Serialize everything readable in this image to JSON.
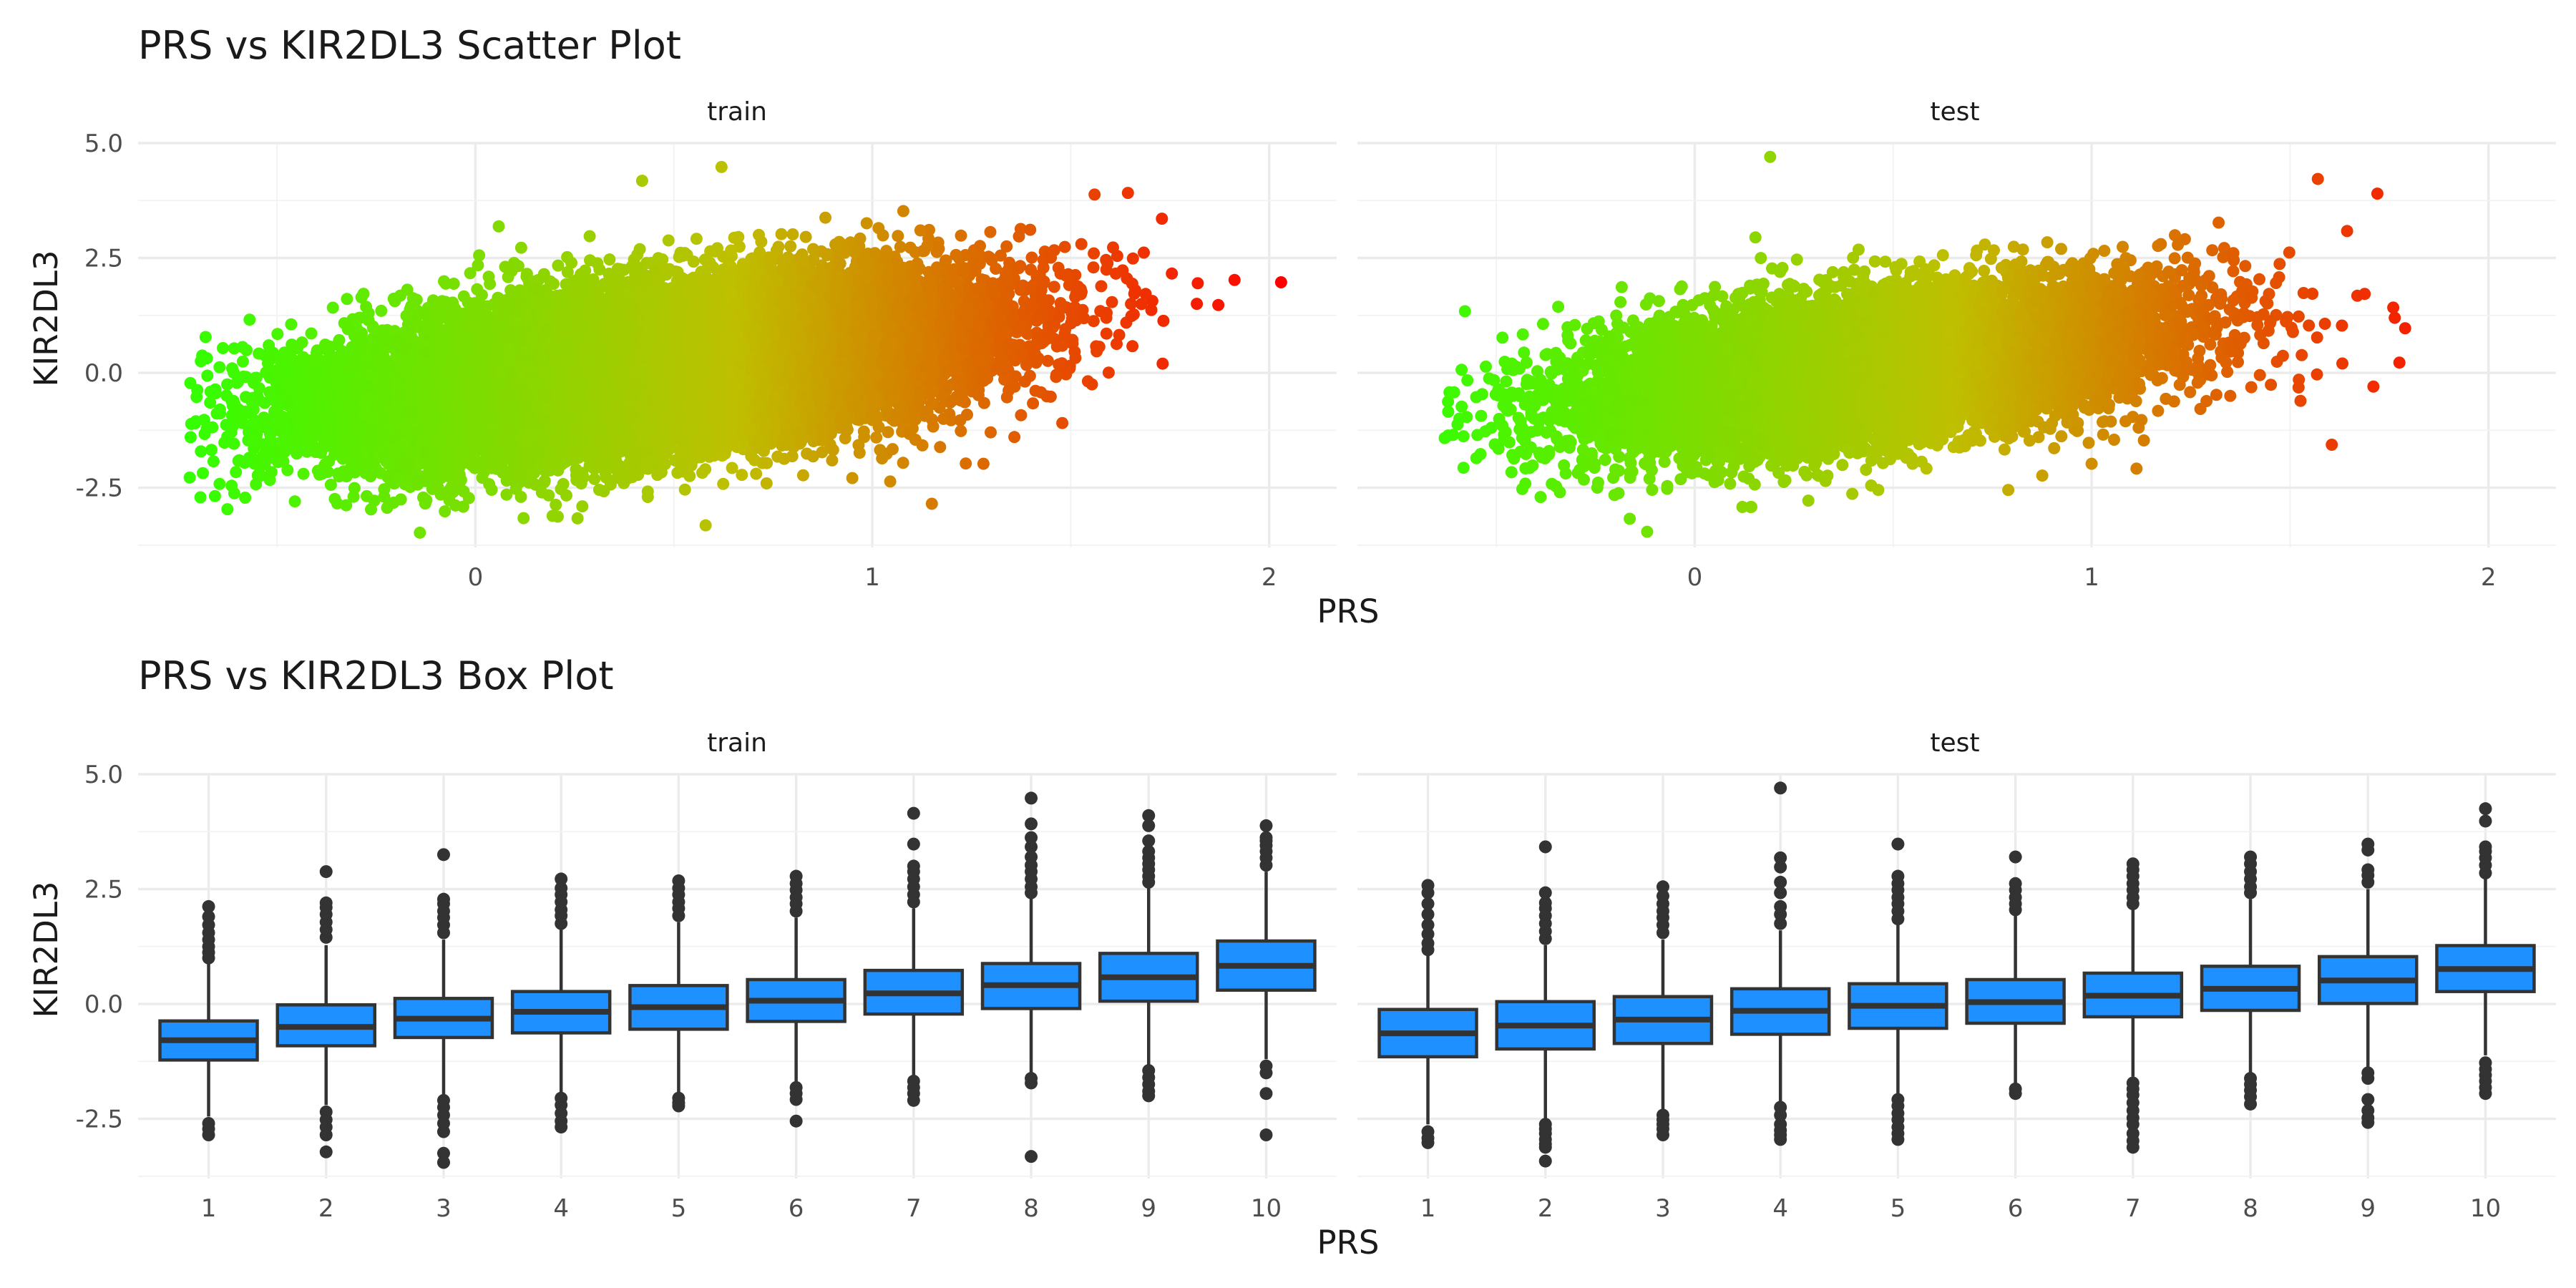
{
  "figure": {
    "xlabel": "PRS",
    "ylabel": "KIR2DL3"
  },
  "chart_data": [
    {
      "type": "scatter",
      "title": "PRS vs KIR2DL3 Scatter Plot",
      "xlabel": "PRS",
      "ylabel": "KIR2DL3",
      "facets": [
        "train",
        "test"
      ],
      "xlim": [
        -0.85,
        2.17
      ],
      "ylim": [
        -3.8,
        5.0
      ],
      "x_ticks": [
        0,
        1,
        2
      ],
      "y_ticks": [
        5.0,
        2.5,
        0.0,
        -2.5
      ],
      "y_tick_labels": [
        "5.0",
        "2.5",
        "0.0",
        "-2.5"
      ],
      "color_gradient": [
        "#33ff00",
        "#bfbf00",
        "#ff0000"
      ],
      "grid": true,
      "trend": {
        "intercept": -0.35,
        "slope": 1.1,
        "sd": 0.8
      },
      "point_counts": {
        "train": 26000,
        "test": 9000
      },
      "x_ranges": {
        "train": [
          -0.72,
          2.03
        ],
        "test": [
          -0.63,
          1.79
        ]
      },
      "notable_points": {
        "train": [
          [
            -0.72,
            -2.28
          ],
          [
            -0.68,
            0.78
          ],
          [
            2.03,
            1.97
          ],
          [
            1.56,
            3.88
          ],
          [
            0.62,
            4.48
          ],
          [
            0.42,
            4.18
          ],
          [
            0.58,
            -3.32
          ],
          [
            -0.14,
            -3.48
          ],
          [
            1.15,
            -2.85
          ],
          [
            1.28,
            -1.98
          ],
          [
            1.82,
            1.95
          ]
        ],
        "test": [
          [
            0.19,
            4.7
          ],
          [
            1.57,
            4.22
          ],
          [
            1.72,
            3.9
          ],
          [
            1.79,
            0.97
          ],
          [
            1.76,
            1.42
          ],
          [
            1.71,
            -0.3
          ],
          [
            -0.63,
            -1.42
          ],
          [
            -0.12,
            -3.46
          ],
          [
            0.12,
            -2.92
          ],
          [
            1.0,
            -1.98
          ],
          [
            0.79,
            -2.55
          ],
          [
            1.32,
            3.27
          ]
        ]
      }
    },
    {
      "type": "box",
      "title": "PRS vs KIR2DL3 Box Plot",
      "xlabel": "PRS",
      "ylabel": "KIR2DL3",
      "facets": [
        "train",
        "test"
      ],
      "categories": [
        "1",
        "2",
        "3",
        "4",
        "5",
        "6",
        "7",
        "8",
        "9",
        "10"
      ],
      "ylim": [
        -3.8,
        5.0
      ],
      "y_ticks": [
        5.0,
        2.5,
        0.0,
        -2.5
      ],
      "y_tick_labels": [
        "5.0",
        "2.5",
        "0.0",
        "-2.5"
      ],
      "box_color": "#1e90ff",
      "grid": true,
      "series": [
        {
          "facet": "train",
          "boxes": [
            {
              "q1": -1.22,
              "median": -0.79,
              "q3": -0.37,
              "lower": -2.45,
              "upper": 0.88,
              "outliers": [
                -2.6,
                -2.72,
                -2.85,
                1.0,
                1.12,
                1.25,
                1.4,
                1.55,
                1.72,
                1.9,
                2.12
              ]
            },
            {
              "q1": -0.91,
              "median": -0.5,
              "q3": -0.02,
              "lower": -2.2,
              "upper": 1.28,
              "outliers": [
                -2.35,
                -2.52,
                -2.68,
                -2.85,
                -3.22,
                1.45,
                1.62,
                1.78,
                1.95,
                2.1,
                2.2,
                2.88
              ]
            },
            {
              "q1": -0.73,
              "median": -0.32,
              "q3": 0.12,
              "lower": -1.98,
              "upper": 1.4,
              "outliers": [
                -2.1,
                -2.25,
                -2.42,
                -2.6,
                -2.78,
                -3.25,
                -3.45,
                1.55,
                1.72,
                1.88,
                2.02,
                2.18,
                2.28,
                3.25
              ]
            },
            {
              "q1": -0.63,
              "median": -0.17,
              "q3": 0.27,
              "lower": -1.92,
              "upper": 1.62,
              "outliers": [
                -2.05,
                -2.2,
                -2.38,
                -2.55,
                -2.68,
                1.75,
                1.92,
                2.05,
                2.22,
                2.38,
                2.52,
                2.72
              ]
            },
            {
              "q1": -0.55,
              "median": -0.07,
              "q3": 0.4,
              "lower": -1.95,
              "upper": 1.78,
              "outliers": [
                -2.05,
                -2.15,
                -2.22,
                1.92,
                2.08,
                2.22,
                2.38,
                2.52,
                2.68
              ]
            },
            {
              "q1": -0.38,
              "median": 0.07,
              "q3": 0.53,
              "lower": -1.72,
              "upper": 1.88,
              "outliers": [
                -1.82,
                -1.95,
                -2.08,
                -2.55,
                2.02,
                2.18,
                2.32,
                2.48,
                2.62,
                2.78
              ]
            },
            {
              "q1": -0.22,
              "median": 0.23,
              "q3": 0.73,
              "lower": -1.58,
              "upper": 2.08,
              "outliers": [
                -1.68,
                -1.82,
                -1.95,
                -2.1,
                2.22,
                2.38,
                2.55,
                2.72,
                2.88,
                3.0,
                3.48,
                4.15
              ]
            },
            {
              "q1": -0.1,
              "median": 0.41,
              "q3": 0.88,
              "lower": -1.52,
              "upper": 2.3,
              "outliers": [
                -1.62,
                -1.72,
                -3.32,
                2.42,
                2.55,
                2.72,
                2.88,
                3.02,
                3.2,
                3.42,
                3.62,
                3.92,
                4.48
              ]
            },
            {
              "q1": 0.06,
              "median": 0.58,
              "q3": 1.1,
              "lower": -1.35,
              "upper": 2.52,
              "outliers": [
                -1.45,
                -1.6,
                -1.75,
                -1.9,
                -2.0,
                2.65,
                2.78,
                2.92,
                3.05,
                3.18,
                3.32,
                3.55,
                3.88,
                4.1
              ]
            },
            {
              "q1": 0.3,
              "median": 0.83,
              "q3": 1.37,
              "lower": -1.2,
              "upper": 2.88,
              "outliers": [
                -1.35,
                -1.5,
                -1.95,
                -2.85,
                3.02,
                3.18,
                3.32,
                3.45,
                3.55,
                3.62,
                3.88
              ]
            }
          ]
        },
        {
          "facet": "test",
          "boxes": [
            {
              "q1": -1.15,
              "median": -0.64,
              "q3": -0.12,
              "lower": -2.62,
              "upper": 1.05,
              "outliers": [
                -2.78,
                -2.92,
                -3.02,
                1.18,
                1.32,
                1.52,
                1.72,
                1.95,
                2.18,
                2.42,
                2.58
              ]
            },
            {
              "q1": -0.98,
              "median": -0.47,
              "q3": 0.05,
              "lower": -2.55,
              "upper": 1.28,
              "outliers": [
                -2.62,
                -2.72,
                -2.82,
                -2.95,
                -3.05,
                -3.12,
                -3.42,
                1.42,
                1.58,
                1.75,
                1.92,
                2.08,
                2.2,
                2.42,
                3.42
              ]
            },
            {
              "q1": -0.86,
              "median": -0.34,
              "q3": 0.16,
              "lower": -2.35,
              "upper": 1.4,
              "outliers": [
                -2.42,
                -2.52,
                -2.62,
                -2.72,
                -2.85,
                1.55,
                1.72,
                1.88,
                2.02,
                2.18,
                2.35,
                2.55
              ]
            },
            {
              "q1": -0.66,
              "median": -0.15,
              "q3": 0.33,
              "lower": -2.15,
              "upper": 1.6,
              "outliers": [
                -2.25,
                -2.42,
                -2.62,
                -2.75,
                -2.85,
                -2.95,
                1.75,
                1.95,
                2.12,
                2.42,
                2.65,
                2.98,
                3.18,
                4.7
              ]
            },
            {
              "q1": -0.53,
              "median": -0.04,
              "q3": 0.44,
              "lower": -1.95,
              "upper": 1.72,
              "outliers": [
                -2.08,
                -2.22,
                -2.38,
                -2.52,
                -2.68,
                -2.82,
                -2.95,
                1.85,
                2.02,
                2.18,
                2.32,
                2.48,
                2.62,
                2.78,
                3.48
              ]
            },
            {
              "q1": -0.42,
              "median": 0.04,
              "q3": 0.53,
              "lower": -1.72,
              "upper": 1.92,
              "outliers": [
                -1.85,
                -1.95,
                2.05,
                2.18,
                2.32,
                2.48,
                2.62,
                3.2
              ]
            },
            {
              "q1": -0.28,
              "median": 0.18,
              "q3": 0.67,
              "lower": -1.58,
              "upper": 2.05,
              "outliers": [
                -1.72,
                -1.85,
                -1.98,
                -2.15,
                -2.32,
                -2.48,
                -2.62,
                -2.82,
                -2.98,
                -3.12,
                2.18,
                2.32,
                2.48,
                2.62,
                2.78,
                2.92,
                3.05
              ]
            },
            {
              "q1": -0.14,
              "median": 0.33,
              "q3": 0.82,
              "lower": -1.5,
              "upper": 2.28,
              "outliers": [
                -1.62,
                -1.75,
                -1.88,
                -2.02,
                -2.18,
                2.42,
                2.55,
                2.72,
                2.88,
                3.05,
                3.2
              ]
            },
            {
              "q1": 0.01,
              "median": 0.51,
              "q3": 1.03,
              "lower": -1.38,
              "upper": 2.5,
              "outliers": [
                -1.5,
                -1.62,
                -2.08,
                -2.32,
                -2.48,
                -2.58,
                2.65,
                2.8,
                2.92,
                3.35,
                3.48
              ]
            },
            {
              "q1": 0.27,
              "median": 0.76,
              "q3": 1.27,
              "lower": -1.12,
              "upper": 2.72,
              "outliers": [
                -1.28,
                -1.42,
                -1.55,
                -1.68,
                -1.82,
                -1.95,
                2.85,
                3.02,
                3.18,
                3.32,
                3.42,
                3.98,
                4.25
              ]
            }
          ]
        }
      ]
    }
  ]
}
